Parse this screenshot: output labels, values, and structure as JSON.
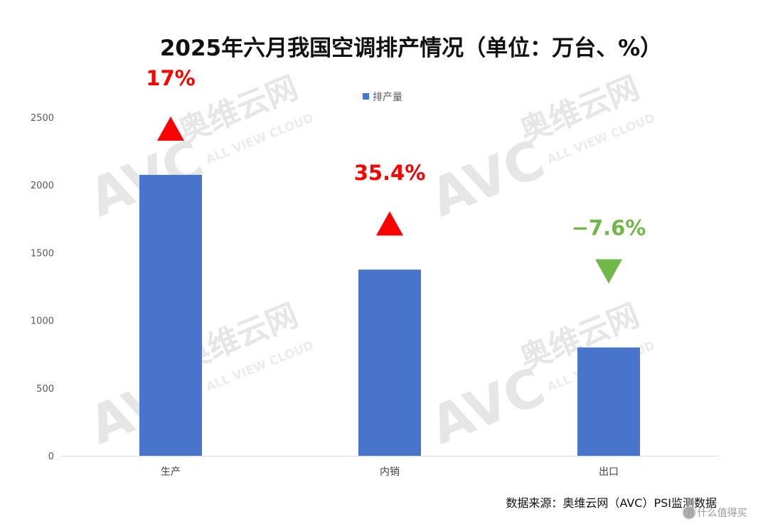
{
  "chart_data": {
    "type": "bar",
    "title": "2025年六月我国空调排产情况（单位：万台、%）",
    "categories": [
      "生产",
      "内销",
      "出口"
    ],
    "series": [
      {
        "name": "排产量",
        "color": "#4874CB",
        "values": [
          2075,
          1375,
          800
        ]
      }
    ],
    "ylim": [
      0,
      2500
    ],
    "yticks": [
      0,
      500,
      1000,
      1500,
      2000,
      2500
    ],
    "grid": false,
    "legend": "top-center",
    "annotations": [
      {
        "category": "生产",
        "label": "17%",
        "direction": "up",
        "color": "#FF0000"
      },
      {
        "category": "内销",
        "label": "35.4%",
        "direction": "up",
        "color": "#FF0000"
      },
      {
        "category": "出口",
        "label": "−7.6%",
        "direction": "down",
        "color": "#70B84A"
      }
    ],
    "source": "数据来源：奥维云网（AVC）PSI监测数据"
  },
  "watermark": {
    "brand": "奥维云网",
    "logo": "AVC",
    "tagline": "ALL VIEW CLOUD"
  },
  "corner_mark": {
    "icon": "zhide-logo-icon",
    "text": "值 什么值得买"
  }
}
